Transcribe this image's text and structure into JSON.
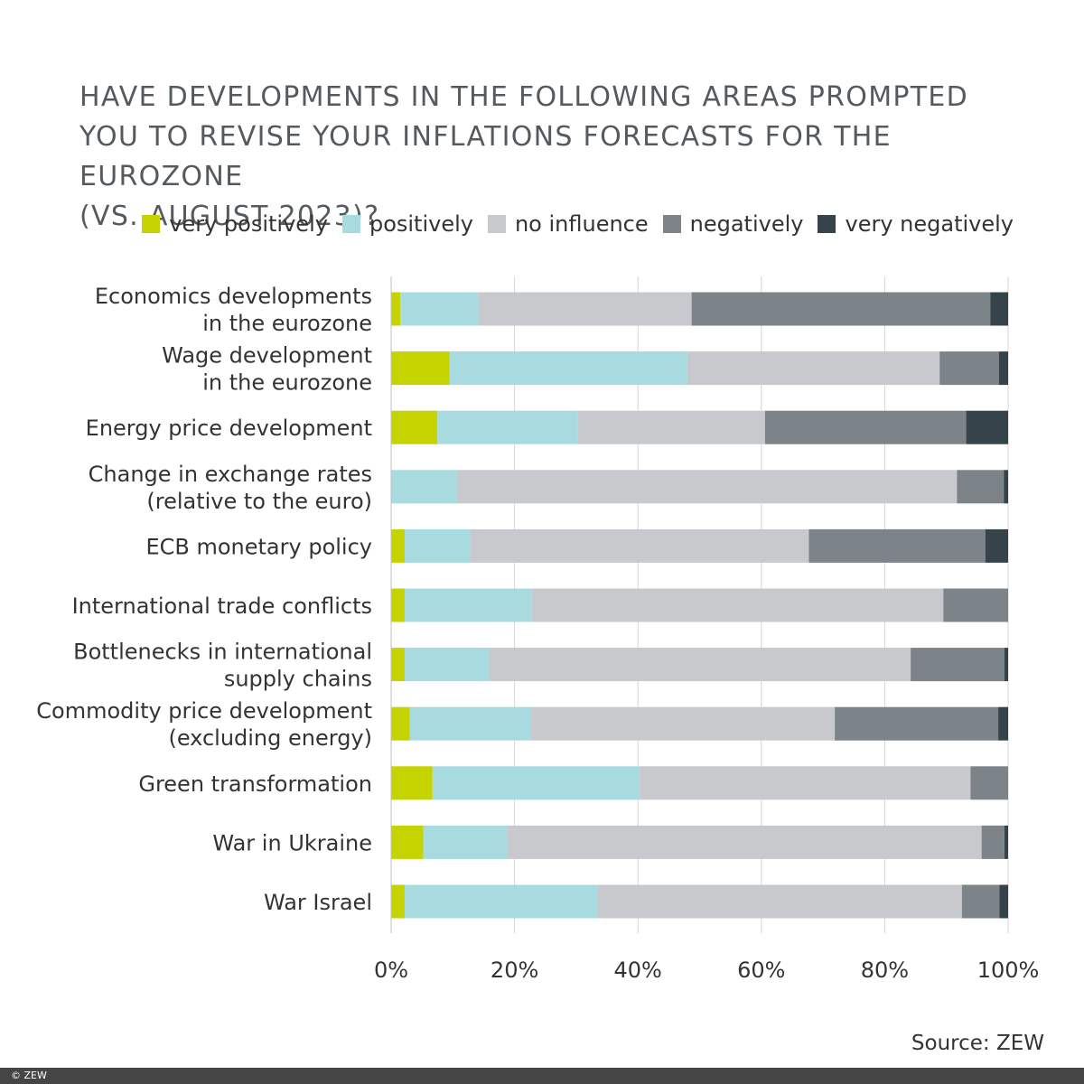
{
  "title_lines": [
    "HAVE DEVELOPMENTS IN THE FOLLOWING AREAS PROMPTED",
    "YOU TO REVISE YOUR INFLATIONS FORECASTS FOR THE EUROZONE",
    "(VS. AUGUST 2023)?"
  ],
  "source": "Source: ZEW",
  "copyright": "© ZEW",
  "colors": {
    "very_positively": "#c5d300",
    "positively": "#a8dbe0",
    "no_influence": "#c8c9cc",
    "negatively": "#7c8389",
    "very_negatively": "#37434b",
    "gridline": "#d6d6d6",
    "axis": "#333333"
  },
  "chart_data": {
    "type": "bar",
    "orientation": "horizontal",
    "stacked": true,
    "title": "HAVE DEVELOPMENTS IN THE FOLLOWING AREAS PROMPTED YOU TO REVISE YOUR INFLATIONS FORECASTS FOR THE EUROZONE (VS. AUGUST 2023)?",
    "xlabel": "",
    "ylabel": "",
    "xlim": [
      0,
      100
    ],
    "x_ticks": [
      "0%",
      "20%",
      "40%",
      "60%",
      "80%",
      "100%"
    ],
    "legend_position": "top-right",
    "grid": true,
    "categories": [
      [
        "Economics developments",
        "in the eurozone"
      ],
      [
        "Wage development",
        "in the eurozone"
      ],
      [
        "Energy price development"
      ],
      [
        "Change in exchange rates",
        "(relative to the euro)"
      ],
      [
        "ECB monetary policy"
      ],
      [
        "International trade conflicts"
      ],
      [
        "Bottlenecks in international",
        "supply chains"
      ],
      [
        "Commodity price development",
        "(excluding energy)"
      ],
      [
        "Green transformation"
      ],
      [
        "War in Ukraine"
      ],
      [
        "War Israel"
      ]
    ],
    "series": [
      {
        "key": "very_positively",
        "name": "very positively",
        "values": [
          1.5,
          9.5,
          7.5,
          0,
          2.2,
          2.2,
          2.2,
          3,
          6.7,
          5.2,
          2.2
        ]
      },
      {
        "key": "positively",
        "name": "positively",
        "values": [
          12.6,
          38.5,
          22.8,
          10.6,
          10.6,
          20.6,
          13.6,
          19.7,
          33.6,
          13.6,
          31.2
        ]
      },
      {
        "key": "no_influence",
        "name": "no influence",
        "values": [
          34.6,
          40.9,
          30.3,
          81.1,
          54.9,
          66.7,
          68.4,
          49.2,
          53.6,
          76.9,
          59.1
        ]
      },
      {
        "key": "negatively",
        "name": "negatively",
        "values": [
          48.4,
          9.6,
          32.6,
          7.6,
          28.6,
          10.5,
          15.2,
          26.5,
          6.1,
          3.7,
          6.1
        ]
      },
      {
        "key": "very_negatively",
        "name": "very negatively",
        "values": [
          2.9,
          1.5,
          6.8,
          0.7,
          3.7,
          0,
          0.6,
          1.6,
          0,
          0.6,
          1.4
        ]
      }
    ]
  }
}
